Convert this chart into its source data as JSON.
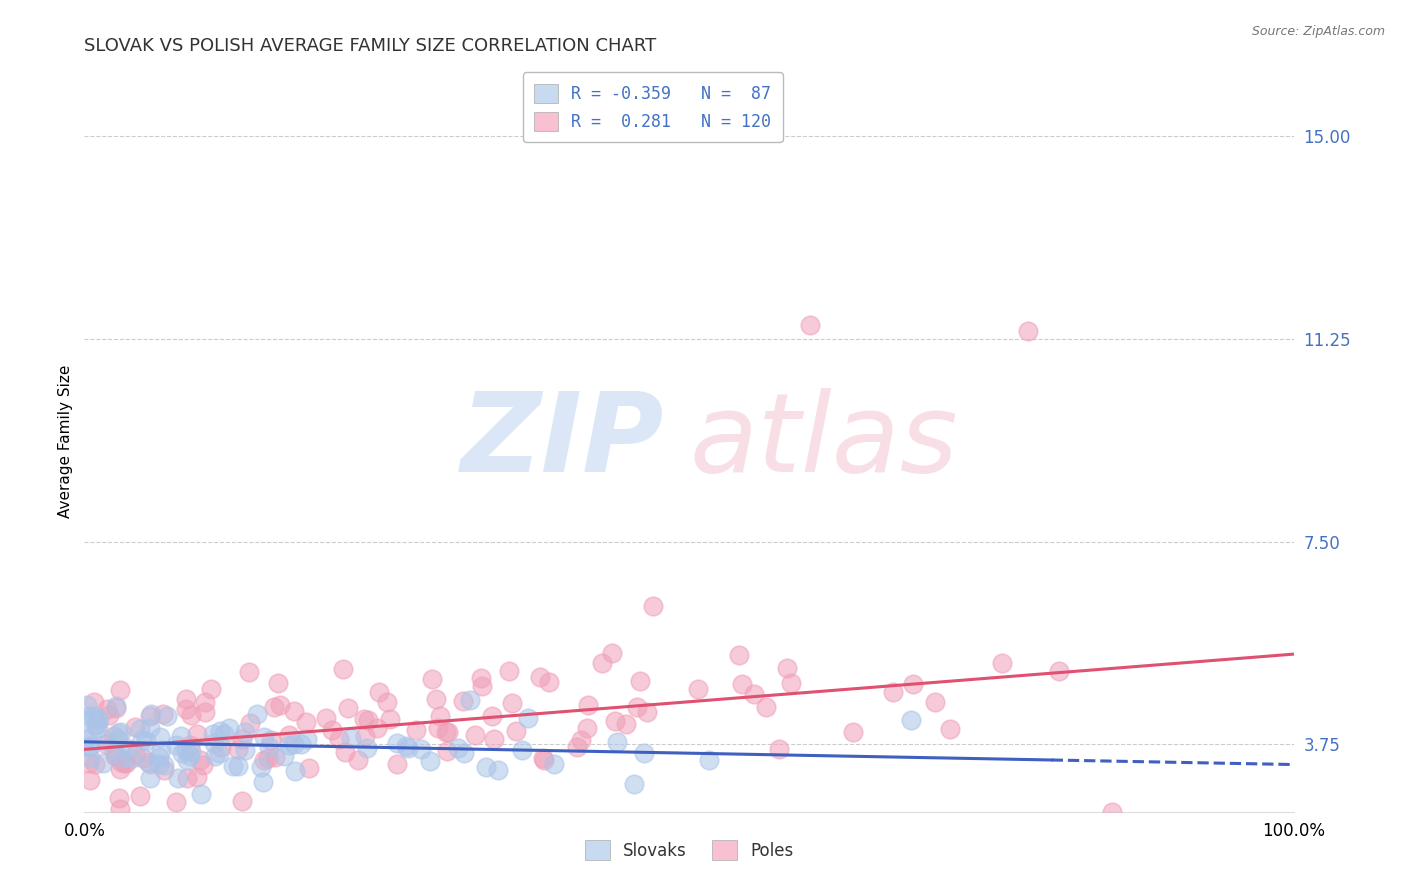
{
  "title": "SLOVAK VS POLISH AVERAGE FAMILY SIZE CORRELATION CHART",
  "source_text": "Source: ZipAtlas.com",
  "ylabel": "Average Family Size",
  "xlim": [
    0,
    1
  ],
  "ylim": [
    2.5,
    16.0
  ],
  "yticks": [
    3.75,
    7.5,
    11.25,
    15.0
  ],
  "yticklabels": [
    "3.75",
    "7.50",
    "11.25",
    "15.00"
  ],
  "xticklabels": [
    "0.0%",
    "100.0%"
  ],
  "background_color": "#ffffff",
  "grid_color": "#cccccc",
  "slovak_color": "#aac4e8",
  "polish_color": "#f0a0b8",
  "slovak_line_color": "#4060c0",
  "polish_line_color": "#e05070",
  "R_slovak": -0.359,
  "N_slovak": 87,
  "R_polish": 0.281,
  "N_polish": 120,
  "title_fontsize": 13,
  "axis_label_fontsize": 11,
  "tick_fontsize": 12,
  "legend_fontsize": 12,
  "tick_color": "#4472c4"
}
